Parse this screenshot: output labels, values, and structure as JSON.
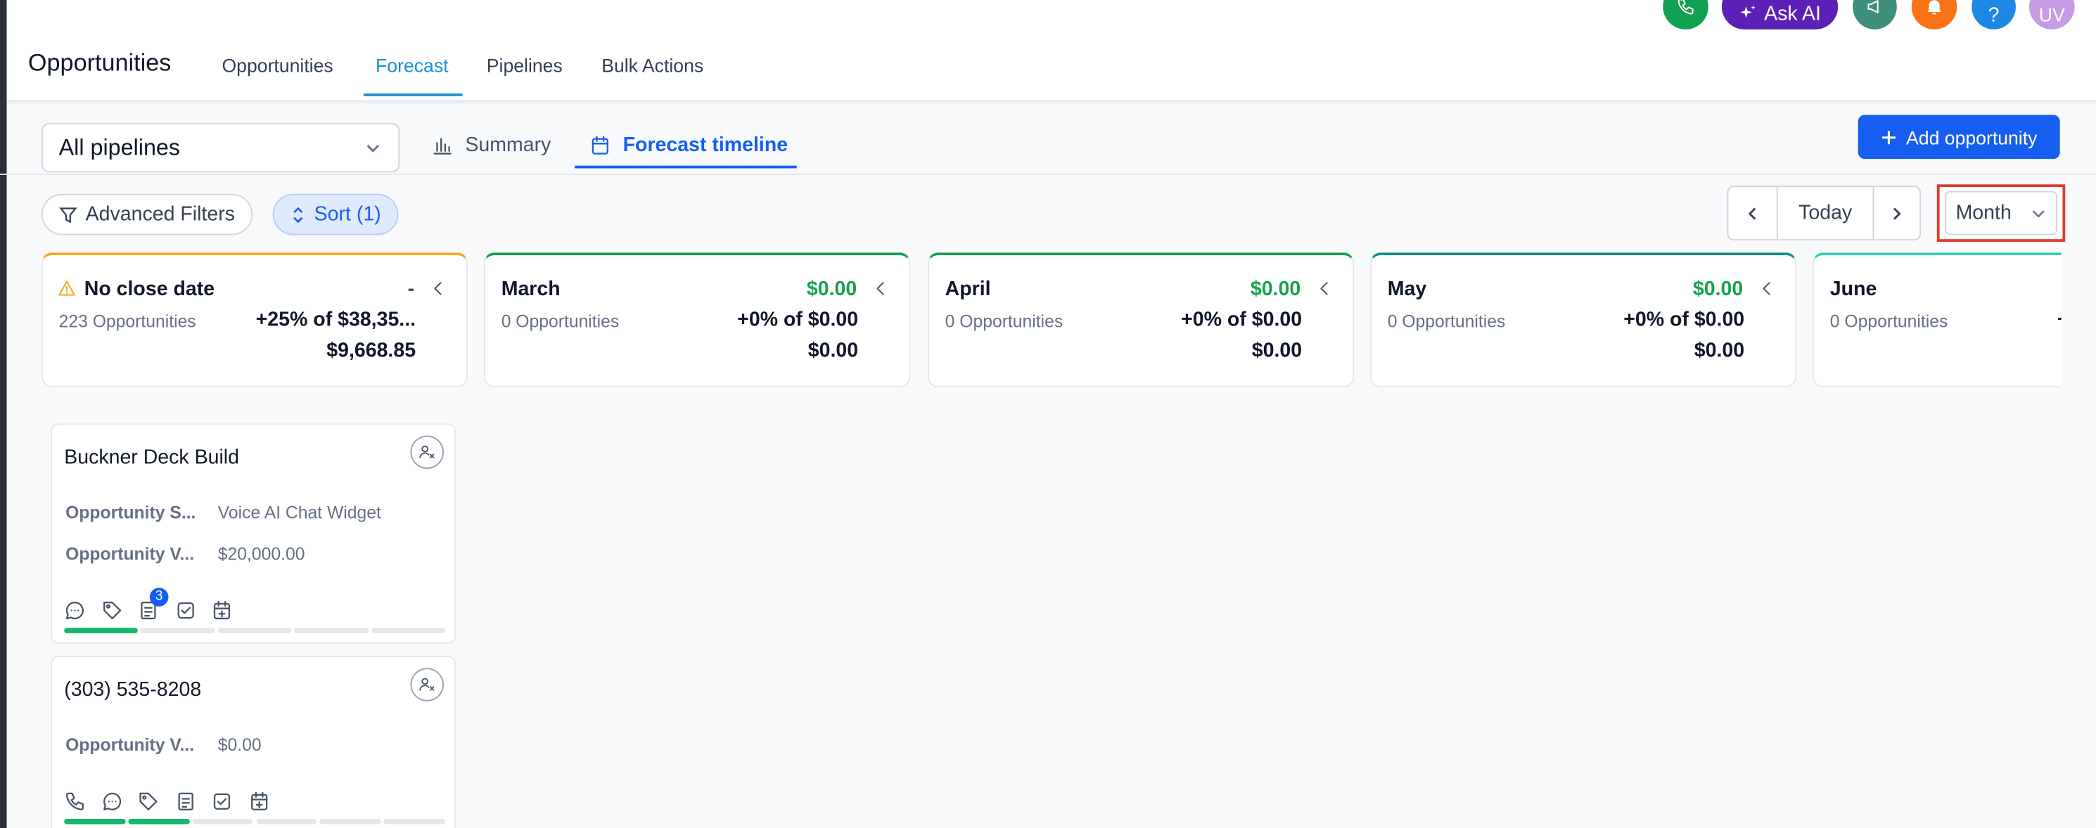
{
  "header": {
    "title": "Opportunities",
    "tabs": [
      "Opportunities",
      "Forecast",
      "Pipelines",
      "Bulk Actions"
    ],
    "active_tab": 1,
    "ask_ai": "Ask AI",
    "help": "?",
    "avatar": "UV"
  },
  "toolbar": {
    "pipeline_select": "All pipelines",
    "view_tabs": [
      "Summary",
      "Forecast timeline"
    ],
    "active_view": 1,
    "add_button": "Add opportunity",
    "filters_button": "Advanced Filters",
    "sort_button": "Sort (1)",
    "today_button": "Today",
    "period_select": "Month"
  },
  "columns": [
    {
      "title": "No close date",
      "amount": "-",
      "count": "223 Opportunities",
      "forecast": "+25% of $38,35...",
      "total": "$9,668.85",
      "color": "#f5a623",
      "amount_color": "#475467",
      "warning": true
    },
    {
      "title": "March",
      "amount": "$0.00",
      "count": "0 Opportunities",
      "forecast": "+0% of $0.00",
      "total": "$0.00",
      "color": "#12a150",
      "amount_color": "#16a34a",
      "warning": false
    },
    {
      "title": "April",
      "amount": "$0.00",
      "count": "0 Opportunities",
      "forecast": "+0% of $0.00",
      "total": "$0.00",
      "color": "#12a150",
      "amount_color": "#16a34a",
      "warning": false
    },
    {
      "title": "May",
      "amount": "$0.00",
      "count": "0 Opportunities",
      "forecast": "+0% of $0.00",
      "total": "$0.00",
      "color": "#0e9384",
      "amount_color": "#16a34a",
      "warning": false
    },
    {
      "title": "June",
      "count": "0 Opportunities",
      "forecast": "+",
      "color": "#2ed3b7",
      "warning": false
    }
  ],
  "cards": [
    {
      "title": "Buckner Deck Build",
      "fields": [
        {
          "label": "Opportunity S...",
          "value": "Voice AI Chat Widget"
        },
        {
          "label": "Opportunity V...",
          "value": "$20,000.00"
        }
      ],
      "badge": "3",
      "stages_done": 1,
      "stages_total": 5
    },
    {
      "title": "(303) 535-8208",
      "fields": [
        {
          "label": "Opportunity V...",
          "value": "$0.00"
        }
      ],
      "stages_done": 2,
      "stages_total": 6
    }
  ]
}
